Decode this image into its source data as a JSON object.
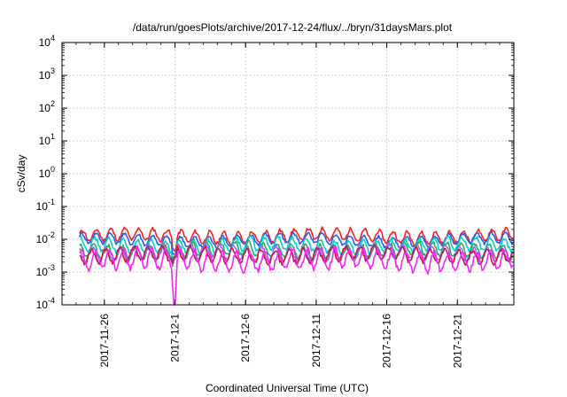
{
  "chart_data": {
    "type": "line",
    "title": "/data/run/goesPlots/archive/2017-12-24/flux/../bryn/31daysMars.plot",
    "xlabel": "Coordinated Universal Time (UTC)",
    "ylabel": "cSv/day",
    "yscale": "log",
    "ylim": [
      0.0001,
      10000
    ],
    "xlim": [
      "2017-11-23",
      "2017-12-25"
    ],
    "grid": true,
    "legend": "none",
    "x_ticks": [
      "2017-11-26",
      "2017-12-1",
      "2017-12-6",
      "2017-12-11",
      "2017-12-16",
      "2017-12-21"
    ],
    "y_ticks": [
      {
        "value": 0.0001,
        "mantissa": "10",
        "exp": "-4"
      },
      {
        "value": 0.001,
        "mantissa": "10",
        "exp": "-3"
      },
      {
        "value": 0.01,
        "mantissa": "10",
        "exp": "-2"
      },
      {
        "value": 0.1,
        "mantissa": "10",
        "exp": "-1"
      },
      {
        "value": 1,
        "mantissa": "10",
        "exp": "0"
      },
      {
        "value": 10,
        "mantissa": "10",
        "exp": "1"
      },
      {
        "value": 100,
        "mantissa": "10",
        "exp": "2"
      },
      {
        "value": 1000,
        "mantissa": "10",
        "exp": "3"
      },
      {
        "value": 10000,
        "mantissa": "10",
        "exp": "4"
      }
    ],
    "series": [
      {
        "color": "#ff2020",
        "base": 0.0125,
        "amp": 0.25,
        "phase": 0.3
      },
      {
        "color": "#1f5fff",
        "base": 0.0095,
        "amp": 0.22,
        "phase": 0.6
      },
      {
        "color": "#00d0d0",
        "base": 0.0065,
        "amp": 0.28,
        "phase": 1.1
      },
      {
        "color": "#20b060",
        "base": 0.0045,
        "amp": 0.3,
        "phase": 1.7
      },
      {
        "color": "#a06ae0",
        "base": 0.0038,
        "amp": 0.32,
        "phase": 2.2
      },
      {
        "color": "#c01a4a",
        "base": 0.0033,
        "amp": 0.3,
        "phase": 2.6
      },
      {
        "color": "#ff20ff",
        "base": 0.0023,
        "amp": 0.42,
        "phase": 0.9
      }
    ],
    "dip": {
      "date": "2017-11-30T23:00",
      "min": 0.0001
    }
  }
}
